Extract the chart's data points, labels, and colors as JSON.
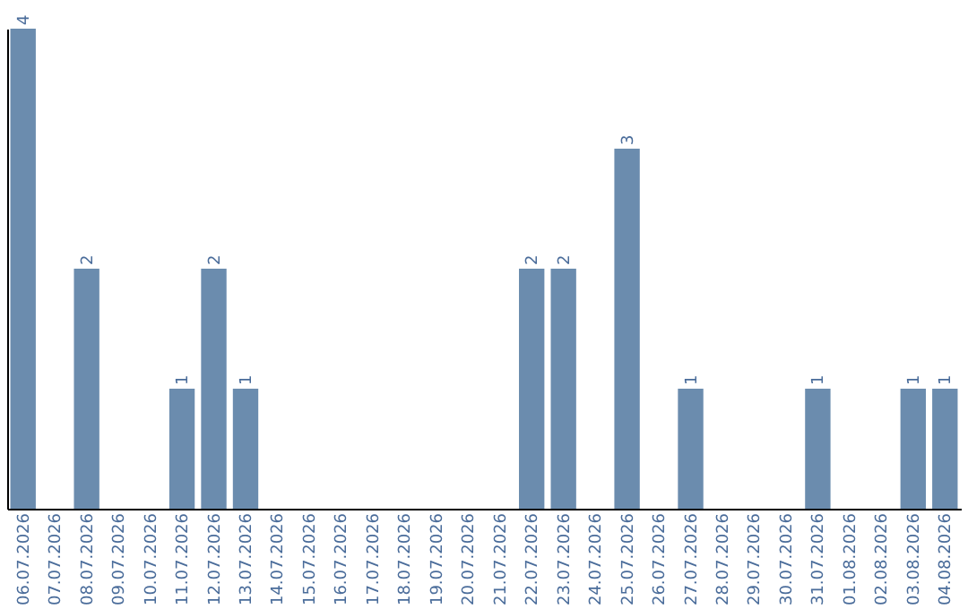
{
  "chart_data": {
    "type": "bar",
    "categories": [
      "06.07.2026",
      "07.07.2026",
      "08.07.2026",
      "09.07.2026",
      "10.07.2026",
      "11.07.2026",
      "12.07.2026",
      "13.07.2026",
      "14.07.2026",
      "15.07.2026",
      "16.07.2026",
      "17.07.2026",
      "18.07.2026",
      "19.07.2026",
      "20.07.2026",
      "21.07.2026",
      "22.07.2026",
      "23.07.2026",
      "24.07.2026",
      "25.07.2026",
      "26.07.2026",
      "27.07.2026",
      "28.07.2026",
      "29.07.2026",
      "30.07.2026",
      "31.07.2026",
      "01.08.2026",
      "02.08.2026",
      "03.08.2026",
      "04.08.2026"
    ],
    "values": [
      4,
      0,
      2,
      0,
      0,
      1,
      2,
      1,
      0,
      0,
      0,
      0,
      0,
      0,
      0,
      0,
      2,
      2,
      0,
      3,
      0,
      1,
      0,
      0,
      0,
      1,
      0,
      0,
      1,
      1
    ],
    "value_labels": [
      "4",
      null,
      "2",
      null,
      null,
      "1",
      "2",
      "1",
      null,
      null,
      null,
      null,
      null,
      null,
      null,
      null,
      "2",
      "2",
      null,
      "3",
      null,
      "1",
      null,
      null,
      null,
      "1",
      null,
      null,
      "1",
      "1"
    ],
    "color": "#6b8cae",
    "ylim": [
      0,
      4
    ],
    "tick_labels": "x",
    "grid": false
  }
}
